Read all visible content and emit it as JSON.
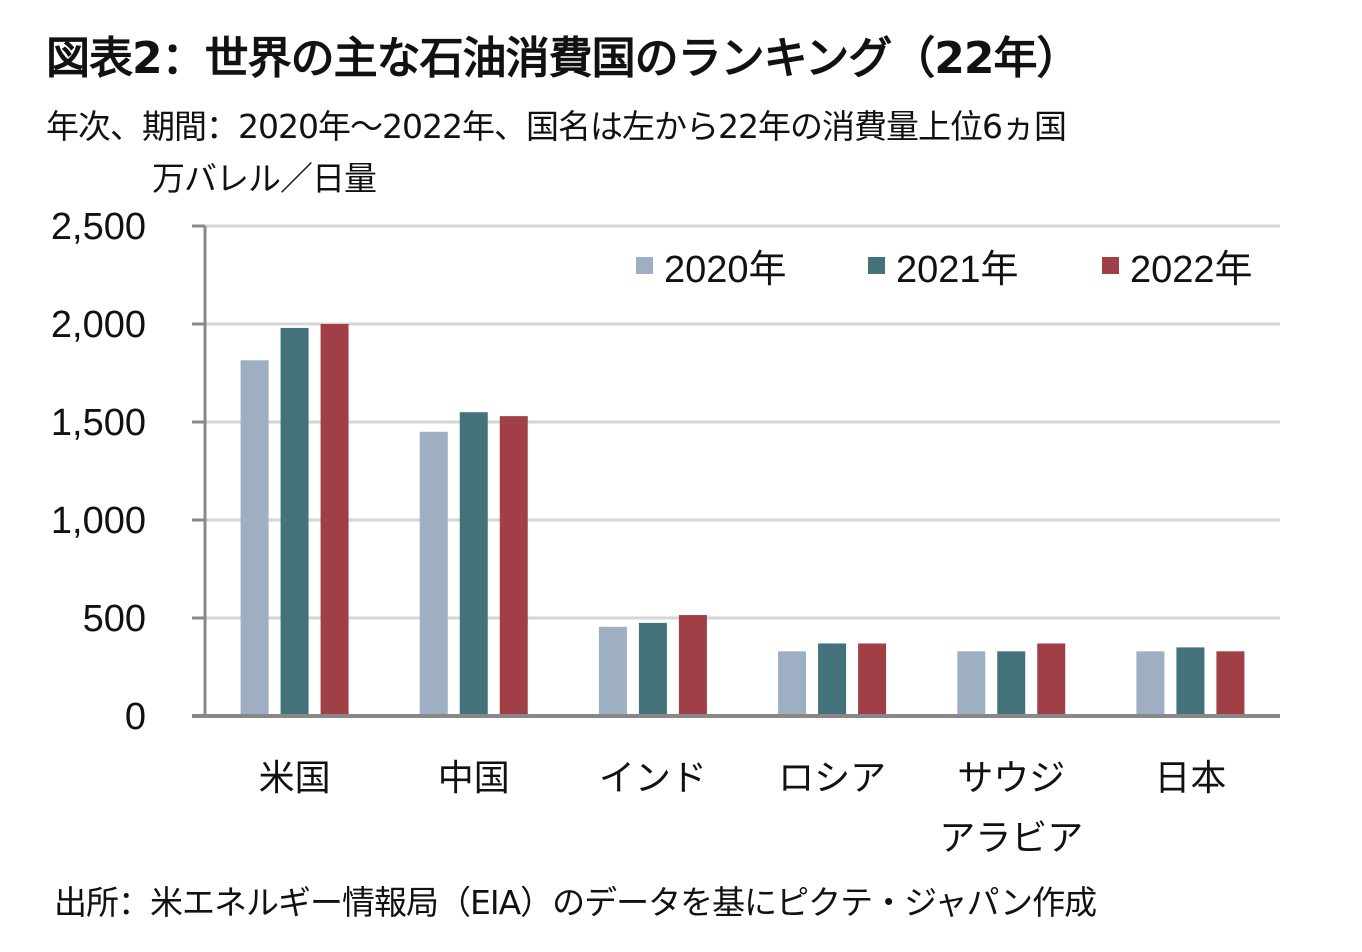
{
  "title": "図表2：世界の主な石油消費国のランキング（22年）",
  "subtitle": "年次、期間：2020年～2022年、国名は左から22年の消費量上位6ヵ国",
  "unit": "万バレル／日量",
  "source": "出所：米エネルギー情報局（EIA）のデータを基にピクテ・ジャパン作成",
  "chart_data": {
    "type": "bar",
    "title": "図表2：世界の主な石油消費国のランキング（22年）",
    "xlabel": "",
    "ylabel": "万バレル／日量",
    "ylim": [
      0,
      2500
    ],
    "yticks": [
      0,
      500,
      1000,
      1500,
      2000,
      2500
    ],
    "ytick_labels": [
      "0",
      "500",
      "1,000",
      "1,500",
      "2,000",
      "2,500"
    ],
    "grid": true,
    "legend_position": "top-right",
    "categories": [
      [
        "米国"
      ],
      [
        "中国"
      ],
      [
        "インド"
      ],
      [
        "ロシア"
      ],
      [
        "サウジ",
        "アラビア"
      ],
      [
        "日本"
      ]
    ],
    "series": [
      {
        "name": "2020年",
        "color": "#9eafc4",
        "values": [
          1815,
          1450,
          455,
          330,
          330,
          330
        ]
      },
      {
        "name": "2021年",
        "color": "#44727a",
        "values": [
          1980,
          1550,
          475,
          370,
          330,
          350
        ]
      },
      {
        "name": "2022年",
        "color": "#a03f46",
        "values": [
          2000,
          1530,
          515,
          370,
          370,
          330
        ]
      }
    ]
  }
}
